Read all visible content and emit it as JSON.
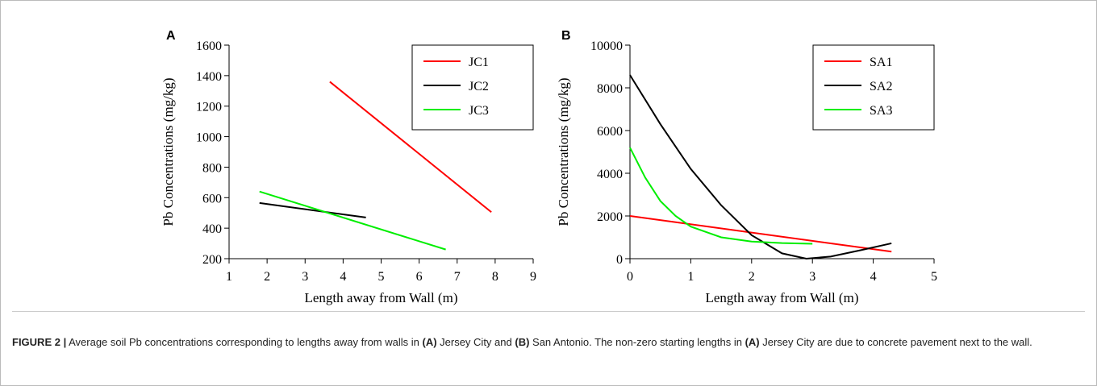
{
  "chart_data": [
    {
      "type": "line",
      "panel": "A",
      "xlabel": "Length away from Wall (m)",
      "ylabel": "Pb Concentrations (mg/kg)",
      "xlim": [
        1,
        9
      ],
      "xticks": [
        1,
        2,
        3,
        4,
        5,
        6,
        7,
        8,
        9
      ],
      "ylim": [
        200,
        1600
      ],
      "yticks": [
        200,
        400,
        600,
        800,
        1000,
        1200,
        1400,
        1600
      ],
      "legend": "upper right",
      "series": [
        {
          "name": "JC1",
          "color": "#ff0000",
          "x": [
            3.65,
            7.9
          ],
          "values": [
            1360,
            505
          ]
        },
        {
          "name": "JC2",
          "color": "#000000",
          "x": [
            1.8,
            4.6
          ],
          "values": [
            565,
            470
          ]
        },
        {
          "name": "JC3",
          "color": "#00ee00",
          "x": [
            1.8,
            6.7
          ],
          "values": [
            640,
            260
          ]
        }
      ]
    },
    {
      "type": "line",
      "panel": "B",
      "xlabel": "Length away from Wall (m)",
      "ylabel": "Pb Concentrations (mg/kg)",
      "xlim": [
        0,
        5
      ],
      "xticks": [
        0,
        1,
        2,
        3,
        4,
        5
      ],
      "ylim": [
        0,
        10000
      ],
      "yticks": [
        0,
        2000,
        4000,
        6000,
        8000,
        10000
      ],
      "legend": "upper right",
      "series": [
        {
          "name": "SA1",
          "color": "#ff0000",
          "x": [
            0,
            4.3
          ],
          "values": [
            2000,
            330
          ]
        },
        {
          "name": "SA2",
          "color": "#000000",
          "x": [
            0,
            0.5,
            1,
            1.5,
            2,
            2.5,
            2.9,
            3.3,
            3.8,
            4.3
          ],
          "values": [
            8600,
            6300,
            4200,
            2500,
            1100,
            250,
            0,
            100,
            400,
            720
          ]
        },
        {
          "name": "SA3",
          "color": "#00ee00",
          "x": [
            0,
            0.25,
            0.5,
            0.75,
            1,
            1.5,
            2,
            2.5,
            3
          ],
          "values": [
            5200,
            3800,
            2700,
            2000,
            1500,
            1000,
            800,
            730,
            700
          ]
        }
      ]
    }
  ],
  "caption": {
    "parts": [
      {
        "text": "FIGURE 2 |",
        "bold": true
      },
      {
        "text": " Average soil Pb concentrations corresponding to lengths away from walls in ",
        "bold": false
      },
      {
        "text": "(A)",
        "bold": true
      },
      {
        "text": " Jersey City and ",
        "bold": false
      },
      {
        "text": "(B)",
        "bold": true
      },
      {
        "text": " San Antonio. The non-zero starting lengths in ",
        "bold": false
      },
      {
        "text": "(A)",
        "bold": true
      },
      {
        "text": " Jersey City are due to concrete pavement next to the wall.",
        "bold": false
      }
    ]
  }
}
